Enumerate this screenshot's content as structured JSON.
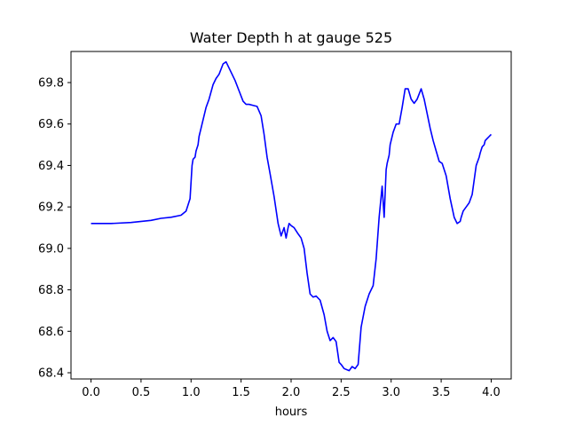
{
  "chart_data": {
    "type": "line",
    "title": "Water Depth h at gauge 525",
    "xlabel": "hours",
    "ylabel": "",
    "xlim": [
      -0.2,
      4.2
    ],
    "ylim": [
      68.37,
      69.95
    ],
    "xticks": [
      0.0,
      0.5,
      1.0,
      1.5,
      2.0,
      2.5,
      3.0,
      3.5,
      4.0
    ],
    "xtick_labels": [
      "0.0",
      "0.5",
      "1.0",
      "1.5",
      "2.0",
      "2.5",
      "3.0",
      "3.5",
      "4.0"
    ],
    "yticks": [
      68.4,
      68.6,
      68.8,
      69.0,
      69.2,
      69.4,
      69.6,
      69.8
    ],
    "ytick_labels": [
      "68.4",
      "68.6",
      "68.8",
      "69.0",
      "69.2",
      "69.4",
      "69.6",
      "69.8"
    ],
    "grid": false,
    "series": [
      {
        "color": "#0000ff",
        "x": [
          0.0,
          0.2,
          0.4,
          0.6,
          0.7,
          0.8,
          0.9,
          0.95,
          0.99,
          1.01,
          1.02,
          1.04,
          1.05,
          1.07,
          1.08,
          1.1,
          1.12,
          1.15,
          1.18,
          1.22,
          1.25,
          1.28,
          1.32,
          1.35,
          1.38,
          1.41,
          1.44,
          1.48,
          1.52,
          1.55,
          1.58,
          1.62,
          1.66,
          1.7,
          1.73,
          1.76,
          1.79,
          1.83,
          1.87,
          1.9,
          1.93,
          1.95,
          1.97,
          1.98,
          2.0,
          2.03,
          2.07,
          2.1,
          2.13,
          2.16,
          2.19,
          2.22,
          2.25,
          2.29,
          2.33,
          2.36,
          2.39,
          2.42,
          2.45,
          2.48,
          2.5,
          2.53,
          2.58,
          2.61,
          2.64,
          2.67,
          2.7,
          2.74,
          2.78,
          2.82,
          2.85,
          2.88,
          2.91,
          2.93,
          2.95,
          2.96,
          2.98,
          2.99,
          3.02,
          3.05,
          3.08,
          3.11,
          3.14,
          3.17,
          3.2,
          3.23,
          3.26,
          3.3,
          3.33,
          3.36,
          3.39,
          3.42,
          3.45,
          3.48,
          3.51,
          3.55,
          3.59,
          3.63,
          3.66,
          3.69,
          3.7,
          3.72,
          3.75,
          3.78,
          3.81,
          3.85,
          3.88,
          3.89,
          3.91,
          3.93,
          3.94,
          3.96,
          3.98,
          4.0
        ],
        "y": [
          69.12,
          69.12,
          69.125,
          69.135,
          69.145,
          69.15,
          69.16,
          69.18,
          69.24,
          69.4,
          69.43,
          69.44,
          69.47,
          69.5,
          69.54,
          69.58,
          69.62,
          69.68,
          69.72,
          69.79,
          69.82,
          69.84,
          69.89,
          69.9,
          69.87,
          69.84,
          69.81,
          69.76,
          69.71,
          69.695,
          69.695,
          69.69,
          69.685,
          69.64,
          69.55,
          69.44,
          69.36,
          69.25,
          69.12,
          69.06,
          69.1,
          69.05,
          69.1,
          69.12,
          69.11,
          69.1,
          69.07,
          69.05,
          69.0,
          68.88,
          68.78,
          68.765,
          68.77,
          68.75,
          68.68,
          68.6,
          68.555,
          68.57,
          68.55,
          68.45,
          68.44,
          68.42,
          68.41,
          68.43,
          68.42,
          68.44,
          68.62,
          68.72,
          68.78,
          68.82,
          68.95,
          69.15,
          69.3,
          69.15,
          69.38,
          69.41,
          69.45,
          69.5,
          69.56,
          69.6,
          69.6,
          69.68,
          69.77,
          69.77,
          69.72,
          69.7,
          69.72,
          69.77,
          69.72,
          69.65,
          69.58,
          69.52,
          69.47,
          69.42,
          69.41,
          69.35,
          69.24,
          69.15,
          69.12,
          69.13,
          69.15,
          69.18,
          69.2,
          69.22,
          69.26,
          69.4,
          69.44,
          69.46,
          69.49,
          69.5,
          69.52,
          69.53,
          69.54,
          69.55
        ]
      }
    ]
  }
}
